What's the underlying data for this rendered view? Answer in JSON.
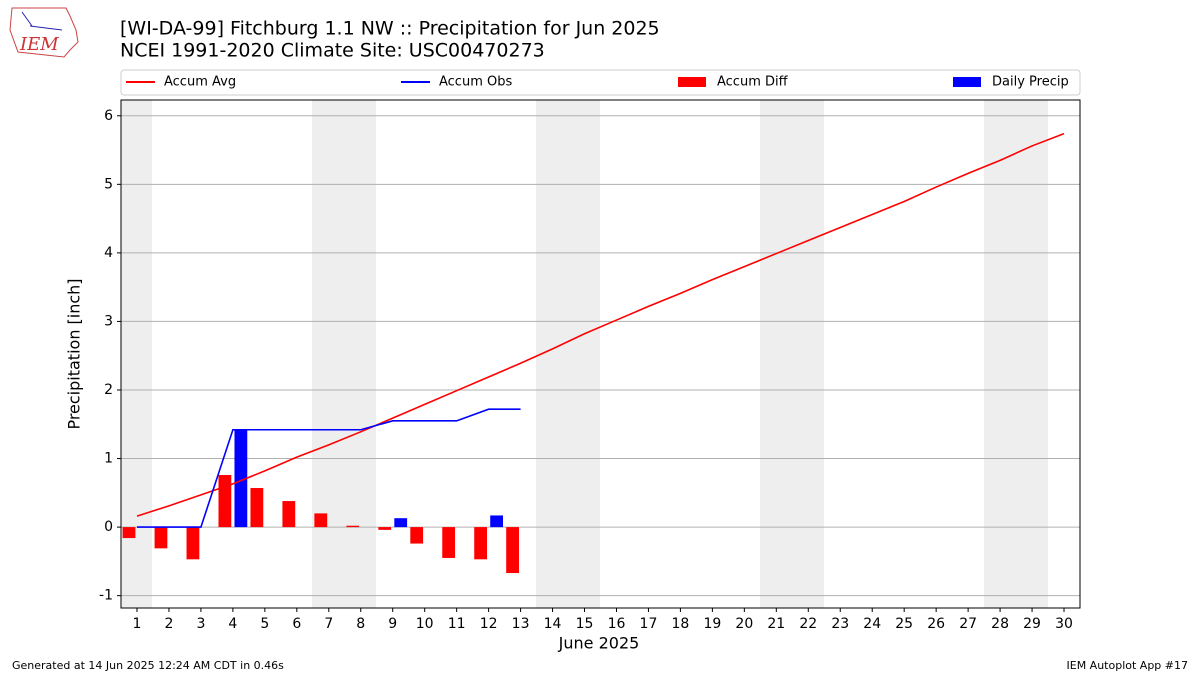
{
  "logo_text": "IEM",
  "footer": {
    "left": "Generated at 14 Jun 2025 12:24 AM CDT in 0.46s",
    "right": "IEM Autoplot App #17"
  },
  "chart_data": {
    "type": "combo",
    "title": "[WI-DA-99] Fitchburg 1.1 NW :: Precipitation for Jun 2025",
    "subtitle": "NCEI 1991-2020 Climate Site: USC00470273",
    "x_label": "June 2025",
    "y_label": "Precipitation [inch]",
    "x": [
      1,
      2,
      3,
      4,
      5,
      6,
      7,
      8,
      9,
      10,
      11,
      12,
      13,
      14,
      15,
      16,
      17,
      18,
      19,
      20,
      21,
      22,
      23,
      24,
      25,
      26,
      27,
      28,
      29,
      30
    ],
    "xlim": [
      0.5,
      30.5
    ],
    "xticks": [
      1,
      2,
      3,
      4,
      5,
      6,
      7,
      8,
      9,
      10,
      11,
      12,
      13,
      14,
      15,
      16,
      17,
      18,
      19,
      20,
      21,
      22,
      23,
      24,
      25,
      26,
      27,
      28,
      29,
      30
    ],
    "ylim": [
      -1.18,
      6.23
    ],
    "yticks": [
      -1,
      0,
      1,
      2,
      3,
      4,
      5,
      6
    ],
    "grid": true,
    "legend": "above",
    "series": [
      {
        "name": "Accum Avg",
        "kind": "line",
        "color": "#ff0000",
        "values": [
          0.16,
          0.31,
          0.47,
          0.63,
          0.82,
          1.02,
          1.2,
          1.39,
          1.59,
          1.79,
          1.99,
          2.19,
          2.39,
          2.6,
          2.82,
          3.02,
          3.22,
          3.41,
          3.61,
          3.8,
          3.99,
          4.18,
          4.37,
          4.56,
          4.75,
          4.96,
          5.16,
          5.35,
          5.56,
          5.74
        ]
      },
      {
        "name": "Accum Obs",
        "kind": "line",
        "color": "#0000ff",
        "values": [
          0,
          0,
          0,
          1.42,
          1.42,
          1.42,
          1.42,
          1.42,
          1.55,
          1.55,
          1.55,
          1.72,
          1.72,
          null,
          null,
          null,
          null,
          null,
          null,
          null,
          null,
          null,
          null,
          null,
          null,
          null,
          null,
          null,
          null,
          null
        ]
      },
      {
        "name": "Accum Diff",
        "kind": "bar",
        "color": "#ff0000",
        "values": [
          -0.16,
          -0.31,
          -0.47,
          0.76,
          0.57,
          0.38,
          0.2,
          0.02,
          -0.04,
          -0.24,
          -0.45,
          -0.47,
          -0.67,
          null,
          null,
          null,
          null,
          null,
          null,
          null,
          null,
          null,
          null,
          null,
          null,
          null,
          null,
          null,
          null,
          null
        ]
      },
      {
        "name": "Daily Precip",
        "kind": "bar",
        "color": "#0000ff",
        "values": [
          0,
          0,
          0,
          1.42,
          0,
          0,
          0,
          0,
          0.13,
          0,
          0,
          0.17,
          0,
          null,
          null,
          null,
          null,
          null,
          null,
          null,
          null,
          null,
          null,
          null,
          null,
          null,
          null,
          null,
          null,
          null
        ]
      }
    ]
  }
}
